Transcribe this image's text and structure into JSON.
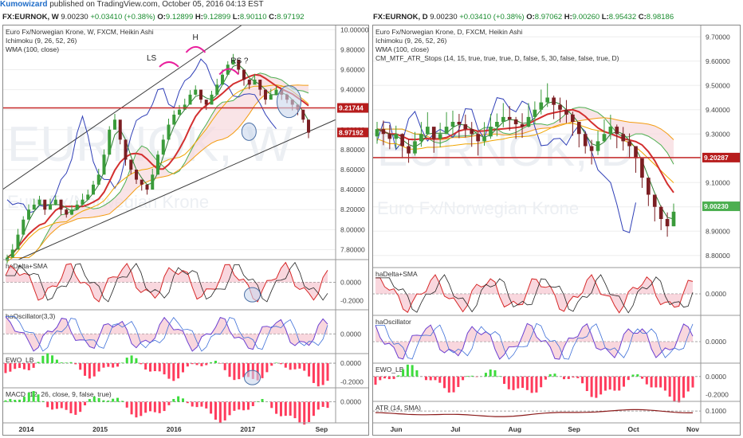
{
  "header": {
    "author": "Kumowizard",
    "published": "published on TradingView.com, October 05, 2016 04:13 EST"
  },
  "colors": {
    "price_badge_red": "#b71c1c",
    "price_badge_green": "#4caf50",
    "channel": "#3b3b3b",
    "support": "#c62828",
    "kijun": "#d32f2f",
    "tenkan": "#2e7d32",
    "chikou": "#2f3fb7",
    "annotation": "#e91e9c"
  },
  "left": {
    "symbol": "FX:EURNOK, W",
    "price": "9.00230",
    "change": "+0.03410 (+0.38%)",
    "o_label": "O:",
    "o": "9.12899",
    "h_label": "H:",
    "h": "9.12899",
    "l_label": "L:",
    "l": "8.90110",
    "c_label": "C:",
    "c": "8.97192",
    "legend": [
      "Euro Fx/Norwegian Krone, W, FXCM, Heikin Ashi",
      "Ichimoku (9, 26, 52, 26)",
      "WMA (100, close)"
    ],
    "watermark1": "EURNOK, W",
    "watermark2": "Euro Fx/Norwegian Krone",
    "annotations": [
      "LS",
      "H",
      "RS ?"
    ],
    "price_ticks": [
      "10.00000",
      "9.80000",
      "9.60000",
      "9.40000",
      "9.20000",
      "9.00000",
      "8.80000",
      "8.60000",
      "8.40000",
      "8.20000",
      "8.00000",
      "7.80000"
    ],
    "badge_red": "9.21744",
    "badge_green": "8.97192",
    "x_ticks": [
      "2014",
      "2015",
      "2016",
      "2017",
      "Sep"
    ],
    "indicators": [
      {
        "name": "haDelta+SMA",
        "ticks": [
          "0.0000",
          "-0.2000"
        ]
      },
      {
        "name": "haOscillator(3,3)",
        "ticks": [
          "0.0000"
        ]
      },
      {
        "name": "EWO_LB",
        "ticks": [
          "0.0000",
          "-0.2000"
        ]
      },
      {
        "name": "MACD (12, 26, close, 9, false, true)",
        "ticks": [
          "0.0000"
        ]
      }
    ]
  },
  "right": {
    "symbol": "FX:EURNOK, D",
    "price": "9.00230",
    "change": "+0.03410 (+0.38%)",
    "o_label": "O:",
    "o": "8.97062",
    "h_label": "H:",
    "h": "9.00260",
    "l_label": "L:",
    "l": "8.95432",
    "c_label": "C:",
    "c": "8.98186",
    "legend": [
      "Euro Fx/Norwegian Krone, D, FXCM, Heikin Ashi",
      "Ichimoku (9, 26, 52, 26)",
      "WMA (100, close)",
      "CM_MTF_ATR_Stops (14, 15, true, true, true, D, false, 5, 30, false, false, true, D)"
    ],
    "watermark1": "EURNOK, D",
    "watermark2": "Euro Fx/Norwegian Krone",
    "price_ticks": [
      "9.70000",
      "9.60000",
      "9.50000",
      "9.40000",
      "9.30000",
      "9.20000",
      "9.10000",
      "9.00000",
      "8.90000",
      "8.80000"
    ],
    "badge_red": "9.20287",
    "badge_green": "9.00230",
    "x_ticks": [
      "Jun",
      "Jul",
      "Aug",
      "Sep",
      "Oct",
      "Nov"
    ],
    "indicators": [
      {
        "name": "haDelta+SMA",
        "ticks": [
          "0.0000"
        ]
      },
      {
        "name": "haOscillator",
        "ticks": [
          "0.0000"
        ]
      },
      {
        "name": "EWO_LB",
        "ticks": [
          "0.0000",
          "-0.2000"
        ]
      },
      {
        "name": "ATR (14, SMA)",
        "ticks": [
          "0.1000"
        ]
      }
    ]
  },
  "chart_data": [
    {
      "type": "candlestick",
      "title": "FX:EURNOK, W",
      "subtitle": "Euro Fx/Norwegian Krone, W, FXCM, Heikin Ashi",
      "x_ticks": [
        "2014",
        "2015",
        "2016",
        "2017",
        "Sep"
      ],
      "ylim": [
        7.7,
        10.05
      ],
      "close_series": [
        7.72,
        7.8,
        7.95,
        8.1,
        8.2,
        8.25,
        8.3,
        8.2,
        8.25,
        8.3,
        8.2,
        8.15,
        8.2,
        8.25,
        8.3,
        8.35,
        8.45,
        8.55,
        8.75,
        9.0,
        9.1,
        8.9,
        8.7,
        8.6,
        8.5,
        8.45,
        8.4,
        8.55,
        8.75,
        8.9,
        9.05,
        9.15,
        9.2,
        9.25,
        9.35,
        9.4,
        9.3,
        9.25,
        9.35,
        9.45,
        9.55,
        9.65,
        9.7,
        9.6,
        9.5,
        9.45,
        9.5,
        9.4,
        9.3,
        9.35,
        9.4,
        9.35,
        9.3,
        9.25,
        9.2,
        9.1,
        8.97
      ],
      "support_level": 9.21744,
      "last_close": 8.97192,
      "grid": true
    },
    {
      "type": "candlestick",
      "title": "FX:EURNOK, D",
      "subtitle": "Euro Fx/Norwegian Krone, D, FXCM, Heikin Ashi",
      "x_ticks": [
        "Jun",
        "Jul",
        "Aug",
        "Sep",
        "Oct",
        "Nov"
      ],
      "ylim": [
        8.75,
        9.75
      ],
      "close_series": [
        9.32,
        9.3,
        9.28,
        9.3,
        9.25,
        9.22,
        9.27,
        9.3,
        9.33,
        9.28,
        9.3,
        9.33,
        9.35,
        9.34,
        9.32,
        9.3,
        9.27,
        9.29,
        9.33,
        9.35,
        9.37,
        9.36,
        9.34,
        9.33,
        9.37,
        9.4,
        9.43,
        9.45,
        9.42,
        9.4,
        9.38,
        9.35,
        9.3,
        9.25,
        9.23,
        9.27,
        9.3,
        9.33,
        9.3,
        9.27,
        9.25,
        9.2,
        9.12,
        9.05,
        9.0,
        8.95,
        8.92,
        8.98
      ],
      "support_level": 9.20287,
      "last_close": 9.0023,
      "grid": true
    }
  ]
}
